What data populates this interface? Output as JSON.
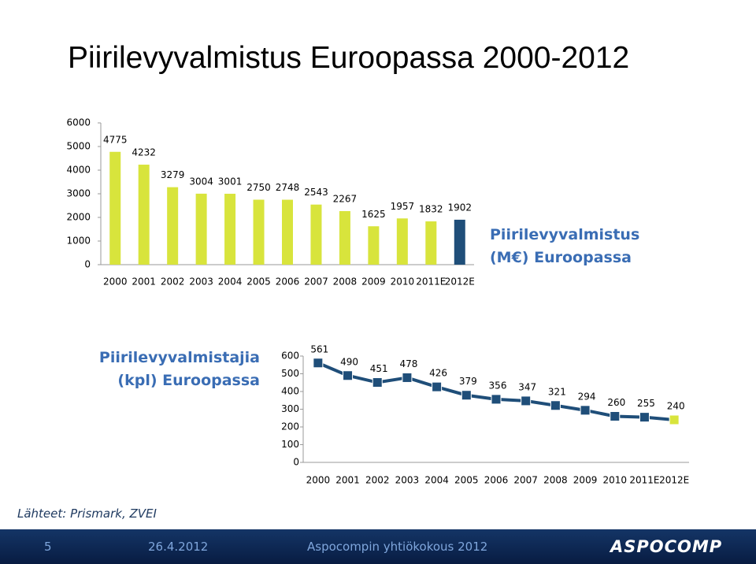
{
  "slide": {
    "title": "Piirilevyvalmistus Euroopassa 2000-2012",
    "source": "Lähteet: Prismark, ZVEI",
    "footer": {
      "page": "5",
      "date": "26.4.2012",
      "event": "Aspocompin yhtiökokous 2012",
      "logo": "ASPOCOMP"
    }
  },
  "chart_data": [
    {
      "type": "bar",
      "title": "Piirilevyvalmistus (M€) Euroopassa",
      "categories": [
        "2000",
        "2001",
        "2002",
        "2003",
        "2004",
        "2005",
        "2006",
        "2007",
        "2008",
        "2009",
        "2010",
        "2011E",
        "2012E"
      ],
      "values": [
        4775,
        4232,
        3279,
        3004,
        3001,
        2750,
        2748,
        2543,
        2267,
        1625,
        1957,
        1832,
        1902
      ],
      "colors": [
        "#d8e43c",
        "#d8e43c",
        "#d8e43c",
        "#d8e43c",
        "#d8e43c",
        "#d8e43c",
        "#d8e43c",
        "#d8e43c",
        "#d8e43c",
        "#d8e43c",
        "#d8e43c",
        "#d8e43c",
        "#1f4e79"
      ],
      "ylim": [
        0,
        6000
      ],
      "yticks": [
        0,
        1000,
        2000,
        3000,
        4000,
        5000,
        6000
      ],
      "grid": false
    },
    {
      "type": "line",
      "title": "Piirilevyvalmistajia (kpl) Euroopassa",
      "categories": [
        "2000",
        "2001",
        "2002",
        "2003",
        "2004",
        "2005",
        "2006",
        "2007",
        "2008",
        "2009",
        "2010",
        "2011E",
        "2012E"
      ],
      "values": [
        561,
        490,
        451,
        478,
        426,
        379,
        356,
        347,
        321,
        294,
        260,
        255,
        240
      ],
      "color": "#1f4e79",
      "marker_colors": [
        "#1f4e79",
        "#1f4e79",
        "#1f4e79",
        "#1f4e79",
        "#1f4e79",
        "#1f4e79",
        "#1f4e79",
        "#1f4e79",
        "#1f4e79",
        "#1f4e79",
        "#1f4e79",
        "#1f4e79",
        "#d8e43c"
      ],
      "ylim": [
        0,
        600
      ],
      "yticks": [
        0,
        100,
        200,
        300,
        400,
        500,
        600
      ],
      "grid": false
    }
  ]
}
